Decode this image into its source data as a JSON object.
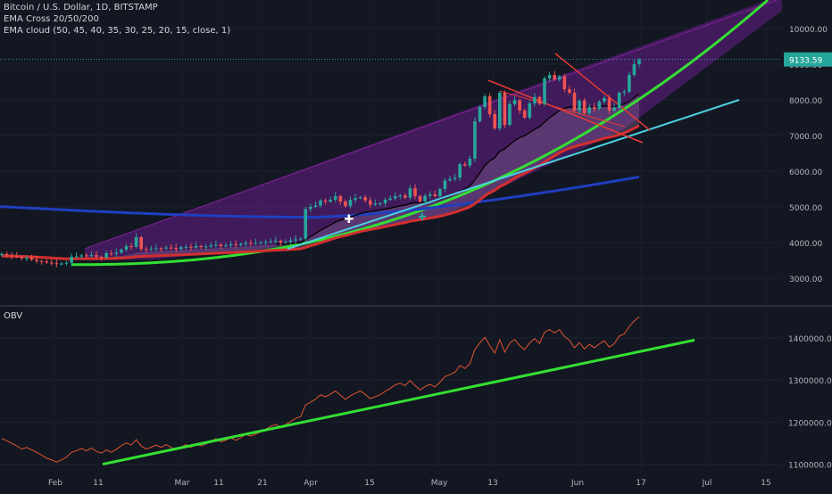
{
  "legend": {
    "title": "Bitcoin / U.S. Dollar, 1D, BITSTAMP",
    "line2": "EMA Cross 20/50/200",
    "line3": "EMA cloud (50, 45, 40, 35, 30, 25, 20, 15, close, 1)"
  },
  "obv_label": "OBV",
  "colors": {
    "background": "#131722",
    "up": "#26a69a",
    "down": "#ef5350",
    "channel_fill": "#7b1fa2",
    "green_curve": "#33e033",
    "cyan_line": "#4dd0e1",
    "blue_ema": "#1f3fbf",
    "red_ema": "#d32f2f",
    "black_ema": "#000000",
    "obv_line": "#e0552e",
    "obv_trend": "#33e033"
  },
  "chart_data": [
    {
      "type": "candlestick",
      "title": "Bitcoin / U.S. Dollar, 1D, BITSTAMP",
      "x_ticks": [
        "Feb",
        "11",
        "Mar",
        "11",
        "21",
        "Apr",
        "15",
        "May",
        "13",
        "Jun",
        "17",
        "Jul",
        "15"
      ],
      "y_ticks": [
        "10000.00",
        "9000.00",
        "8000.00",
        "7000.00",
        "6000.00",
        "5000.00",
        "4000.00",
        "3000.00"
      ],
      "ylim": [
        2300,
        10800
      ],
      "last_price": "9133.59",
      "closes": [
        3680,
        3640,
        3620,
        3600,
        3560,
        3570,
        3520,
        3480,
        3470,
        3440,
        3420,
        3400,
        3410,
        3430,
        3600,
        3610,
        3640,
        3620,
        3650,
        3600,
        3580,
        3700,
        3690,
        3720,
        3800,
        3900,
        3880,
        4150,
        3820,
        3800,
        3820,
        3840,
        3830,
        3860,
        3850,
        3820,
        3870,
        3880,
        3860,
        3900,
        3880,
        3890,
        3920,
        3940,
        3900,
        3920,
        3950,
        3930,
        3960,
        3990,
        3980,
        3990,
        4010,
        4020,
        4030,
        4050,
        4000,
        4020,
        4060,
        4090,
        4110,
        4940,
        5000,
        5040,
        5180,
        5150,
        5200,
        5300,
        5150,
        5020,
        5200,
        5250,
        5270,
        5180,
        5060,
        5090,
        5100,
        5200,
        5240,
        5300,
        5320,
        5260,
        5520,
        5300,
        5150,
        5310,
        5350,
        5300,
        5500,
        5740,
        5780,
        5820,
        6200,
        6160,
        6350,
        7400,
        7800,
        8100,
        7600,
        7200,
        8200,
        7300,
        7880,
        7990,
        7700,
        7500,
        7900,
        8080,
        7890,
        8600,
        8700,
        8570,
        8660,
        8300,
        8200,
        7700,
        7980,
        7630,
        7800,
        7750,
        7950,
        8050,
        7700,
        7780,
        8200,
        8230,
        8700,
        9000,
        9133
      ],
      "ema_series": [
        "EMA 20",
        "EMA 50",
        "EMA 200"
      ]
    },
    {
      "type": "line",
      "title": "OBV",
      "y_ticks": [
        "1400000.0000",
        "1300000.0000",
        "1200000.0000",
        "1100000.0000"
      ],
      "ylim": [
        1080000,
        1470000
      ]
    }
  ]
}
